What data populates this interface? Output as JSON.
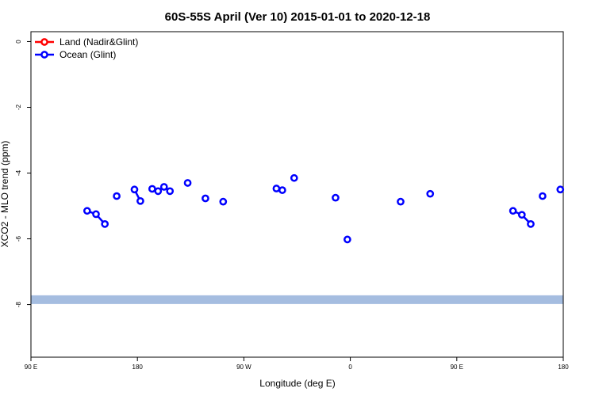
{
  "chart_data": {
    "type": "scatter",
    "title": "60S-55S April (Ver 10)   2015-01-01 to 2020-12-18",
    "xlabel": "Longitude (deg E)",
    "ylabel": "XCO2 - MLO trend (ppm)",
    "xlim": [
      90,
      450
    ],
    "ylim": [
      -9.6,
      0.3
    ],
    "x_ticks": [
      {
        "value": 90,
        "label": "90 E"
      },
      {
        "value": 180,
        "label": "180"
      },
      {
        "value": 270,
        "label": "90 W"
      },
      {
        "value": 360,
        "label": "0"
      },
      {
        "value": 450,
        "label": "90 E"
      },
      {
        "value": 540,
        "label": "180"
      }
    ],
    "y_ticks": [
      {
        "value": 0,
        "label": "0"
      },
      {
        "value": -2,
        "label": "-2"
      },
      {
        "value": -4,
        "label": "-4"
      },
      {
        "value": -6,
        "label": "-6"
      },
      {
        "value": -8,
        "label": "-8"
      }
    ],
    "legend": {
      "position": "top-left",
      "entries": [
        {
          "name": "Land (Nadir&Glint)",
          "color": "#ff0000"
        },
        {
          "name": "Ocean (Glint)",
          "color": "#0000ff"
        }
      ]
    },
    "reference_band": {
      "y": -7.85,
      "color": "#a5bde0"
    },
    "series": [
      {
        "name": "Land (Nadir&Glint)",
        "color": "#ff0000",
        "segments": []
      },
      {
        "name": "Ocean (Glint)",
        "color": "#0000ff",
        "segments": [
          [
            {
              "x": 137.5,
              "y": -5.15
            },
            {
              "x": 145,
              "y": -5.25
            },
            {
              "x": 152.5,
              "y": -5.55
            }
          ],
          [
            {
              "x": 162.5,
              "y": -4.7
            }
          ],
          [
            {
              "x": 177.5,
              "y": -4.5
            },
            {
              "x": 182.5,
              "y": -4.85
            }
          ],
          [
            {
              "x": 192.5,
              "y": -4.48
            },
            {
              "x": 197.5,
              "y": -4.55
            }
          ],
          [
            {
              "x": 202.5,
              "y": -4.42
            },
            {
              "x": 207.5,
              "y": -4.55
            }
          ],
          [
            {
              "x": 222.5,
              "y": -4.3
            }
          ],
          [
            {
              "x": 237.5,
              "y": -4.77
            }
          ],
          [
            {
              "x": 252.5,
              "y": -4.87
            }
          ],
          [
            {
              "x": 297.5,
              "y": -4.47
            },
            {
              "x": 302.5,
              "y": -4.52
            }
          ],
          [
            {
              "x": 312.5,
              "y": -4.15
            }
          ],
          [
            {
              "x": 347.5,
              "y": -4.75
            }
          ],
          [
            {
              "x": 357.5,
              "y": -6.02
            }
          ],
          [
            {
              "x": 402.5,
              "y": -4.87
            }
          ],
          [
            {
              "x": 427.5,
              "y": -4.63
            }
          ],
          [
            {
              "x": 497.5,
              "y": -5.15
            },
            {
              "x": 505,
              "y": -5.27
            },
            {
              "x": 512.5,
              "y": -5.55
            }
          ],
          [
            {
              "x": 522.5,
              "y": -4.7
            }
          ],
          [
            {
              "x": 537.5,
              "y": -4.5
            }
          ]
        ]
      }
    ]
  }
}
